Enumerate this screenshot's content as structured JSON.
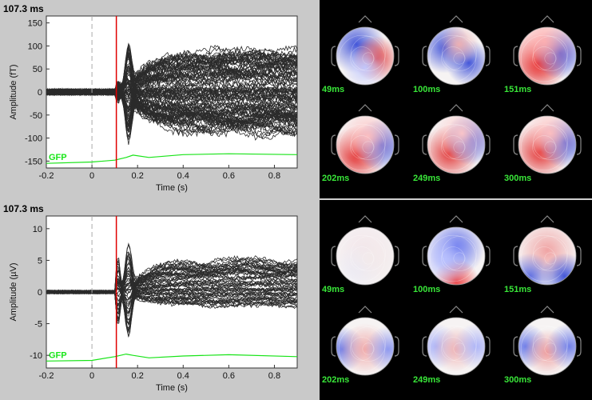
{
  "panels": [
    {
      "time_label": "107.3 ms",
      "ylabel": "Amplitude (fT)",
      "xlabel": "Time (s)",
      "gfp_label": "GFP",
      "ylim": [
        -165,
        165
      ],
      "yticks": [
        -150,
        -100,
        -50,
        0,
        50,
        100,
        150
      ],
      "xlim": [
        -0.2,
        0.9
      ],
      "xticks": [
        -0.2,
        0,
        0.2,
        0.4,
        0.6,
        0.8
      ],
      "cursor_x": 0.107,
      "topo_times": [
        "49ms",
        "100ms",
        "151ms",
        "202ms",
        "249ms",
        "300ms"
      ]
    },
    {
      "time_label": "107.3 ms",
      "ylabel": "Amplitude (µV)",
      "xlabel": "Time (s)",
      "gfp_label": "GFP",
      "ylim": [
        -12,
        12
      ],
      "yticks": [
        -10,
        -5,
        0,
        5,
        10
      ],
      "xlim": [
        -0.2,
        0.9
      ],
      "xticks": [
        -0.2,
        0,
        0.2,
        0.4,
        0.6,
        0.8
      ],
      "cursor_x": 0.107,
      "topo_times": [
        "49ms",
        "100ms",
        "151ms",
        "202ms",
        "249ms",
        "300ms"
      ]
    }
  ],
  "colors": {
    "trace": "#2b2b2b",
    "cursor": "#e00000",
    "gfp": "#18e418",
    "baseline": "#aaaaaa"
  },
  "chart_data": [
    {
      "type": "line",
      "title": "",
      "xlabel": "Time (s)",
      "ylabel": "Amplitude (fT)",
      "xlim": [
        -0.2,
        0.9
      ],
      "ylim": [
        -165,
        165
      ],
      "series": [
        {
          "name": "GFP",
          "x": [
            -0.2,
            0.0,
            0.1,
            0.15,
            0.18,
            0.25,
            0.4,
            0.6,
            0.9
          ],
          "values": [
            -155,
            -152,
            -148,
            -142,
            -137,
            -142,
            -136,
            -134,
            -136
          ]
        }
      ]
    },
    {
      "type": "line",
      "title": "",
      "xlabel": "Time (s)",
      "ylabel": "Amplitude (µV)",
      "xlim": [
        -0.2,
        0.9
      ],
      "ylim": [
        -12,
        12
      ],
      "series": [
        {
          "name": "GFP",
          "x": [
            -0.2,
            0.0,
            0.1,
            0.15,
            0.18,
            0.25,
            0.4,
            0.6,
            0.9
          ],
          "values": [
            -10.9,
            -10.8,
            -10.2,
            -9.8,
            -10.0,
            -10.4,
            -10.1,
            -9.9,
            -10.2
          ]
        }
      ]
    }
  ]
}
